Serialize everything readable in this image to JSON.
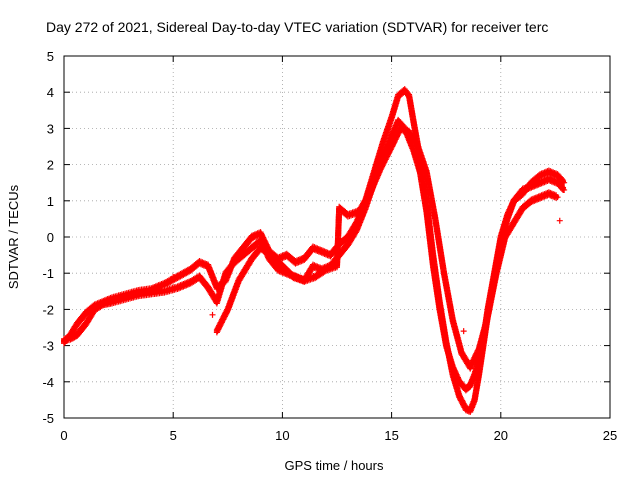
{
  "chart_data": {
    "type": "scatter",
    "title": "Day 272 of 2021, Sidereal Day-to-day VTEC variation (SDTVAR) for receiver terc",
    "xlabel": "GPS time / hours",
    "ylabel": "SDTVAR / TECUs",
    "xlim": [
      0,
      25
    ],
    "ylim": [
      -5,
      5
    ],
    "xticks": [
      "0",
      "5",
      "10",
      "15",
      "20",
      "25"
    ],
    "yticks": [
      "-5",
      "-4",
      "-3",
      "-2",
      "-1",
      "0",
      "1",
      "2",
      "3",
      "4",
      "5"
    ],
    "grid": true,
    "legend": "none",
    "marker": "+",
    "color": "#ff0000",
    "series": [
      {
        "x": [
          0.0,
          0.3,
          0.6,
          1.0,
          1.4,
          1.8,
          2.2,
          2.8,
          3.4,
          4.0,
          4.6,
          5.2,
          5.8,
          6.2,
          6.6,
          7.0,
          7.4,
          7.8,
          8.2,
          8.6,
          9.0,
          9.4,
          9.8,
          10.2,
          10.6,
          11.0,
          11.4,
          11.8,
          12.2,
          12.6,
          13.0,
          13.4,
          13.8,
          14.2,
          14.6,
          15.0,
          15.3,
          15.6,
          15.8,
          16.0,
          16.3,
          16.6,
          16.9,
          17.2,
          17.5,
          17.8,
          18.1,
          18.4,
          18.6,
          18.8,
          19.0,
          19.2,
          19.4,
          19.7,
          20.0,
          20.3,
          20.6,
          21.0,
          21.4,
          21.8,
          22.2,
          22.6,
          22.9
        ],
        "y": [
          -2.9,
          -2.7,
          -2.4,
          -2.1,
          -1.9,
          -1.8,
          -1.7,
          -1.6,
          -1.5,
          -1.45,
          -1.3,
          -1.1,
          -0.9,
          -0.7,
          -0.8,
          -1.4,
          -1.2,
          -0.6,
          -0.3,
          0.0,
          0.1,
          -0.4,
          -0.6,
          -0.5,
          -0.7,
          -0.6,
          -0.3,
          -0.4,
          -0.5,
          -0.2,
          0.0,
          0.4,
          1.0,
          1.8,
          2.6,
          3.3,
          3.9,
          4.05,
          3.9,
          3.2,
          2.2,
          1.0,
          -0.5,
          -1.8,
          -2.9,
          -3.8,
          -4.4,
          -4.75,
          -4.8,
          -4.5,
          -3.8,
          -3.0,
          -2.2,
          -1.2,
          -0.2,
          0.5,
          1.0,
          1.3,
          1.4,
          1.5,
          1.6,
          1.5,
          1.3
        ]
      },
      {
        "x": [
          0.0,
          0.3,
          0.6,
          1.0,
          1.4,
          1.8,
          2.2,
          2.8,
          3.4,
          4.0,
          4.6,
          5.2,
          5.8,
          6.2,
          6.6,
          7.0,
          7.4,
          7.8,
          8.2,
          8.6,
          9.0,
          9.4,
          9.8,
          10.2,
          10.6,
          11.0,
          11.4,
          11.8,
          12.2,
          12.6,
          13.0,
          13.4,
          13.8,
          14.2,
          14.6,
          15.0,
          15.3,
          15.6,
          15.8,
          16.0,
          16.3,
          16.6,
          16.9,
          17.2,
          17.5,
          17.8,
          18.1,
          18.4,
          18.6,
          18.8,
          19.0,
          19.2,
          19.4,
          19.7,
          20.0,
          20.3,
          20.6,
          21.0,
          21.4,
          21.8,
          22.2,
          22.6,
          22.9
        ],
        "y": [
          -2.85,
          -2.8,
          -2.7,
          -2.4,
          -2.0,
          -1.85,
          -1.8,
          -1.7,
          -1.6,
          -1.55,
          -1.5,
          -1.4,
          -1.25,
          -1.1,
          -1.4,
          -1.8,
          -1.0,
          -0.7,
          -0.5,
          -0.3,
          -0.1,
          -0.6,
          -0.9,
          -1.0,
          -1.1,
          -1.2,
          -0.8,
          -0.9,
          -0.8,
          -0.5,
          -0.2,
          0.2,
          0.8,
          1.5,
          2.2,
          2.8,
          3.2,
          3.0,
          2.7,
          2.4,
          1.8,
          0.7,
          -0.8,
          -2.0,
          -3.0,
          -3.6,
          -4.0,
          -4.2,
          -4.1,
          -3.8,
          -3.4,
          -2.8,
          -2.0,
          -1.0,
          0.0,
          0.6,
          1.0,
          1.2,
          1.5,
          1.7,
          1.8,
          1.7,
          1.5
        ]
      },
      {
        "x": [
          7.0,
          7.5,
          8.0,
          8.6,
          9.0,
          9.5,
          10.0,
          10.5,
          11.0,
          11.5,
          12.0,
          12.5,
          12.6,
          13.0,
          13.5,
          14.0,
          14.5,
          15.0,
          15.4,
          15.8,
          16.2,
          16.6,
          17.0,
          17.4,
          17.8,
          18.2,
          18.6,
          19.0,
          19.4,
          19.8,
          20.2,
          20.6,
          21.0,
          21.4,
          21.8,
          22.2,
          22.6
        ],
        "y": [
          -2.6,
          -2.0,
          -1.2,
          -0.6,
          -0.3,
          -0.5,
          -0.8,
          -1.1,
          -1.2,
          -1.1,
          -0.9,
          -0.8,
          0.8,
          0.6,
          0.7,
          1.2,
          1.9,
          2.5,
          3.0,
          2.9,
          2.5,
          1.8,
          0.5,
          -1.0,
          -2.3,
          -3.2,
          -3.6,
          -3.1,
          -2.2,
          -1.0,
          0.0,
          0.4,
          0.8,
          1.0,
          1.1,
          1.2,
          1.1
        ]
      }
    ],
    "outliers": [
      {
        "x": 6.8,
        "y": -2.15
      },
      {
        "x": 5.0,
        "y": -1.1
      },
      {
        "x": 22.7,
        "y": 0.45
      },
      {
        "x": 18.3,
        "y": -2.6
      }
    ]
  }
}
